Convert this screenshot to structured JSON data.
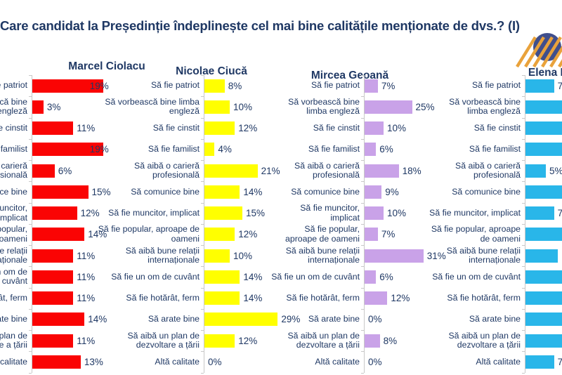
{
  "title": "Care candidat la Președinție îndeplinește cel mai bine calitățile menționate de dvs.? (I)",
  "chart_data": {
    "type": "bar",
    "orientation": "horizontal",
    "value_suffix": "%",
    "categories": [
      "Să fie patriot",
      "Să vorbească bine limba engleză",
      "Să fie cinstit",
      "Să fie familist",
      "Să aibă o carieră profesională",
      "Să comunice bine",
      "Să fie muncitor, implicat",
      "Să fie popular, aproape de oameni",
      "Să aibă bune relații internaționale",
      "Să fie un om de cuvânt",
      "Să fie hotărât, ferm",
      "Să arate bine",
      "Să aibă un plan de dezvoltare a țării",
      "Altă calitate"
    ],
    "series": [
      {
        "name": "Marcel Ciolacu",
        "color": "#FA0404",
        "values": [
          19,
          3,
          11,
          19,
          6,
          15,
          12,
          14,
          11,
          11,
          11,
          14,
          11,
          13
        ],
        "labels": [
          "19%",
          "3%",
          "11%",
          "19%",
          "6%",
          "15%",
          "12%",
          "14%",
          "11%",
          "11%",
          "11%",
          "14%",
          "11%",
          "13%"
        ]
      },
      {
        "name": "Nicolae Ciucă",
        "color": "#FFFF00",
        "values": [
          8,
          10,
          12,
          4,
          21,
          14,
          15,
          12,
          10,
          14,
          14,
          29,
          12,
          0
        ],
        "labels": [
          "8%",
          "10%",
          "12%",
          "4%",
          "21%",
          "14%",
          "15%",
          "12%",
          "10%",
          "14%",
          "14%",
          "29%",
          "12%",
          "0%"
        ]
      },
      {
        "name": "Mircea Geoană",
        "color": "#C9A2E8",
        "values": [
          7,
          25,
          10,
          6,
          18,
          9,
          10,
          7,
          31,
          6,
          12,
          0,
          8,
          0
        ],
        "labels": [
          "7%",
          "25%",
          "10%",
          "6%",
          "18%",
          "9%",
          "10%",
          "7%",
          "31%",
          "6%",
          "12%",
          "0%",
          "8%",
          "0%"
        ]
      },
      {
        "name": "Elena Lasconi",
        "color": "#29B6E9",
        "values": [
          7,
          11,
          9,
          10,
          5,
          10,
          7,
          10,
          8,
          9,
          10,
          10,
          10,
          7
        ],
        "labels": [
          "7%",
          "",
          "",
          "",
          "5%",
          "",
          "7%",
          "",
          "",
          "",
          "",
          "",
          "",
          "7%"
        ]
      }
    ]
  },
  "logo": {
    "circle_color": "#3F4E8C",
    "stripe_color": "#E9A23B"
  },
  "colors": {
    "text": "#1F3864",
    "axis": "#C8C8C8",
    "background": "#FFFFFF"
  }
}
